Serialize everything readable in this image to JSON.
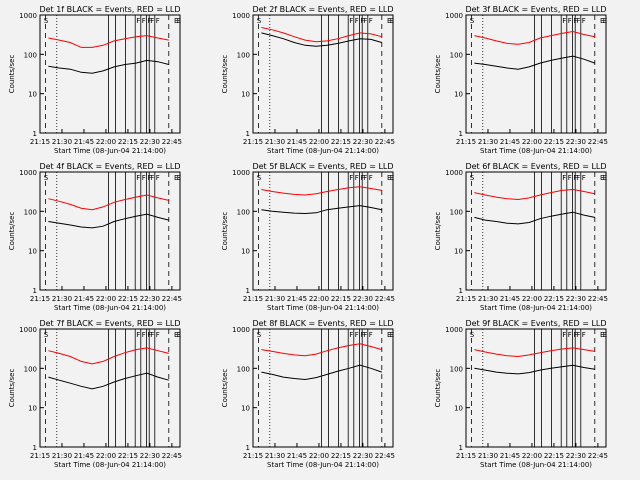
{
  "chart_data": [
    {
      "type": "line",
      "title": "Det 1f BLACK = Events, RED = LLD",
      "xlabel": "Start Time (08-Jun-04 21:14:00)",
      "ylabel": "Counts/sec",
      "yscale": "log",
      "ylim": [
        1,
        1000
      ],
      "xticks": [
        "21:15",
        "21:30",
        "21:45",
        "22:00",
        "22:15",
        "22:30",
        "22:45"
      ],
      "yticks": [
        "1",
        "10",
        "100",
        "1000"
      ],
      "markers": [
        "S",
        "E",
        "E",
        "F",
        "F",
        "F",
        "F",
        "F"
      ],
      "series": [
        {
          "name": "Events",
          "color": "#000000",
          "values": [
            50,
            45,
            42,
            35,
            33,
            38,
            48,
            55,
            60,
            70,
            65,
            55
          ]
        },
        {
          "name": "LLD",
          "color": "#ff0000",
          "values": [
            260,
            230,
            200,
            150,
            150,
            170,
            220,
            250,
            280,
            300,
            260,
            230
          ]
        }
      ]
    },
    {
      "type": "line",
      "title": "Det 2f BLACK = Events, RED = LLD",
      "xlabel": "Start Time (08-Jun-04 21:14:00)",
      "ylabel": "Counts/sec",
      "yscale": "log",
      "ylim": [
        1,
        1000
      ],
      "xticks": [
        "21:15",
        "21:30",
        "21:45",
        "22:00",
        "22:15",
        "22:30",
        "22:45"
      ],
      "yticks": [
        "1",
        "10",
        "100",
        "1000"
      ],
      "markers": [
        "S",
        "E",
        "E",
        "F",
        "F",
        "F",
        "F",
        "F"
      ],
      "series": [
        {
          "name": "Events",
          "color": "#000000",
          "values": [
            350,
            300,
            250,
            200,
            170,
            160,
            170,
            190,
            220,
            250,
            240,
            200
          ]
        },
        {
          "name": "LLD",
          "color": "#ff0000",
          "values": [
            480,
            420,
            350,
            280,
            230,
            210,
            220,
            250,
            300,
            350,
            330,
            280
          ]
        }
      ]
    },
    {
      "type": "line",
      "title": "Det 3f BLACK = Events, RED = LLD",
      "xlabel": "Start Time (08-Jun-04 21:14:00)",
      "ylabel": "Counts/sec",
      "yscale": "log",
      "ylim": [
        1,
        1000
      ],
      "xticks": [
        "21:15",
        "21:30",
        "21:45",
        "22:00",
        "22:15",
        "22:30",
        "22:45"
      ],
      "yticks": [
        "1",
        "10",
        "100",
        "1000"
      ],
      "markers": [
        "S",
        "E",
        "E",
        "F",
        "F",
        "F",
        "F",
        "F"
      ],
      "series": [
        {
          "name": "Events",
          "color": "#000000",
          "values": [
            60,
            55,
            50,
            45,
            42,
            48,
            60,
            70,
            80,
            90,
            75,
            60
          ]
        },
        {
          "name": "LLD",
          "color": "#ff0000",
          "values": [
            300,
            260,
            220,
            190,
            180,
            200,
            260,
            300,
            340,
            380,
            320,
            280
          ]
        }
      ]
    },
    {
      "type": "line",
      "title": "Det 4f BLACK = Events, RED = LLD",
      "xlabel": "Start Time (08-Jun-04 21:14:00)",
      "ylabel": "Counts/sec",
      "yscale": "log",
      "ylim": [
        1,
        1000
      ],
      "xticks": [
        "21:15",
        "21:30",
        "21:45",
        "22:00",
        "22:15",
        "22:30",
        "22:45"
      ],
      "yticks": [
        "1",
        "10",
        "100",
        "1000"
      ],
      "markers": [
        "S",
        "E",
        "E",
        "F",
        "F",
        "F",
        "F",
        "F"
      ],
      "series": [
        {
          "name": "Events",
          "color": "#000000",
          "values": [
            55,
            50,
            45,
            40,
            38,
            42,
            55,
            65,
            75,
            85,
            70,
            60
          ]
        },
        {
          "name": "LLD",
          "color": "#ff0000",
          "values": [
            210,
            180,
            150,
            120,
            110,
            130,
            170,
            200,
            230,
            260,
            220,
            190
          ]
        }
      ]
    },
    {
      "type": "line",
      "title": "Det 5f BLACK = Events, RED = LLD",
      "xlabel": "Start Time (08-Jun-04 21:14:00)",
      "ylabel": "Counts/sec",
      "yscale": "log",
      "ylim": [
        1,
        1000
      ],
      "xticks": [
        "21:15",
        "21:30",
        "21:45",
        "22:00",
        "22:15",
        "22:30",
        "22:45"
      ],
      "yticks": [
        "1",
        "10",
        "100",
        "1000"
      ],
      "markers": [
        "S",
        "E",
        "E",
        "F",
        "F",
        "F",
        "F",
        "F"
      ],
      "series": [
        {
          "name": "Events",
          "color": "#000000",
          "values": [
            110,
            100,
            95,
            90,
            88,
            92,
            110,
            120,
            130,
            140,
            125,
            110
          ]
        },
        {
          "name": "LLD",
          "color": "#ff0000",
          "values": [
            360,
            320,
            290,
            270,
            260,
            280,
            320,
            360,
            400,
            420,
            380,
            340
          ]
        }
      ]
    },
    {
      "type": "line",
      "title": "Det 6f BLACK = Events, RED = LLD",
      "xlabel": "Start Time (08-Jun-04 21:14:00)",
      "ylabel": "Counts/sec",
      "yscale": "log",
      "ylim": [
        1,
        1000
      ],
      "xticks": [
        "21:15",
        "21:30",
        "21:45",
        "22:00",
        "22:15",
        "22:30",
        "22:45"
      ],
      "yticks": [
        "1",
        "10",
        "100",
        "1000"
      ],
      "markers": [
        "S",
        "E",
        "E",
        "F",
        "F",
        "F",
        "F",
        "F"
      ],
      "series": [
        {
          "name": "Events",
          "color": "#000000",
          "values": [
            70,
            60,
            55,
            50,
            48,
            52,
            65,
            75,
            85,
            95,
            80,
            70
          ]
        },
        {
          "name": "LLD",
          "color": "#ff0000",
          "values": [
            300,
            260,
            230,
            210,
            200,
            220,
            260,
            300,
            340,
            360,
            320,
            280
          ]
        }
      ]
    },
    {
      "type": "line",
      "title": "Det 7f BLACK = Events, RED = LLD",
      "xlabel": "Start Time (08-Jun-04 21:14:00)",
      "ylabel": "Counts/sec",
      "yscale": "log",
      "ylim": [
        1,
        1000
      ],
      "xticks": [
        "21:15",
        "21:30",
        "21:45",
        "22:00",
        "22:15",
        "22:30",
        "22:45"
      ],
      "yticks": [
        "1",
        "10",
        "100",
        "1000"
      ],
      "markers": [
        "S",
        "E",
        "E",
        "F",
        "F",
        "F",
        "F",
        "F"
      ],
      "series": [
        {
          "name": "Events",
          "color": "#000000",
          "values": [
            60,
            50,
            42,
            35,
            30,
            35,
            45,
            55,
            65,
            75,
            60,
            50
          ]
        },
        {
          "name": "LLD",
          "color": "#ff0000",
          "values": [
            280,
            240,
            200,
            150,
            130,
            150,
            200,
            250,
            300,
            330,
            280,
            240
          ]
        }
      ]
    },
    {
      "type": "line",
      "title": "Det 8f BLACK = Events, RED = LLD",
      "xlabel": "Start Time (08-Jun-04 21:14:00)",
      "ylabel": "Counts/sec",
      "yscale": "log",
      "ylim": [
        1,
        1000
      ],
      "xticks": [
        "21:15",
        "21:30",
        "21:45",
        "22:00",
        "22:15",
        "22:30",
        "22:45"
      ],
      "yticks": [
        "1",
        "10",
        "100",
        "1000"
      ],
      "markers": [
        "S",
        "E",
        "E",
        "F",
        "F",
        "F",
        "F",
        "F"
      ],
      "series": [
        {
          "name": "Events",
          "color": "#000000",
          "values": [
            80,
            70,
            60,
            55,
            52,
            58,
            70,
            85,
            100,
            120,
            100,
            80
          ]
        },
        {
          "name": "LLD",
          "color": "#ff0000",
          "values": [
            300,
            270,
            240,
            220,
            210,
            230,
            280,
            330,
            380,
            420,
            360,
            300
          ]
        }
      ]
    },
    {
      "type": "line",
      "title": "Det 9f BLACK = Events, RED = LLD",
      "xlabel": "Start Time (08-Jun-04 21:14:00)",
      "ylabel": "Counts/sec",
      "yscale": "log",
      "ylim": [
        1,
        1000
      ],
      "xticks": [
        "21:15",
        "21:30",
        "21:45",
        "22:00",
        "22:15",
        "22:30",
        "22:45"
      ],
      "yticks": [
        "1",
        "10",
        "100",
        "1000"
      ],
      "markers": [
        "S",
        "E",
        "E",
        "F",
        "F",
        "F",
        "F",
        "F"
      ],
      "series": [
        {
          "name": "Events",
          "color": "#000000",
          "values": [
            100,
            90,
            80,
            75,
            72,
            78,
            90,
            100,
            110,
            120,
            105,
            95
          ]
        },
        {
          "name": "LLD",
          "color": "#ff0000",
          "values": [
            300,
            260,
            230,
            210,
            200,
            220,
            250,
            280,
            310,
            330,
            300,
            270
          ]
        }
      ]
    }
  ]
}
